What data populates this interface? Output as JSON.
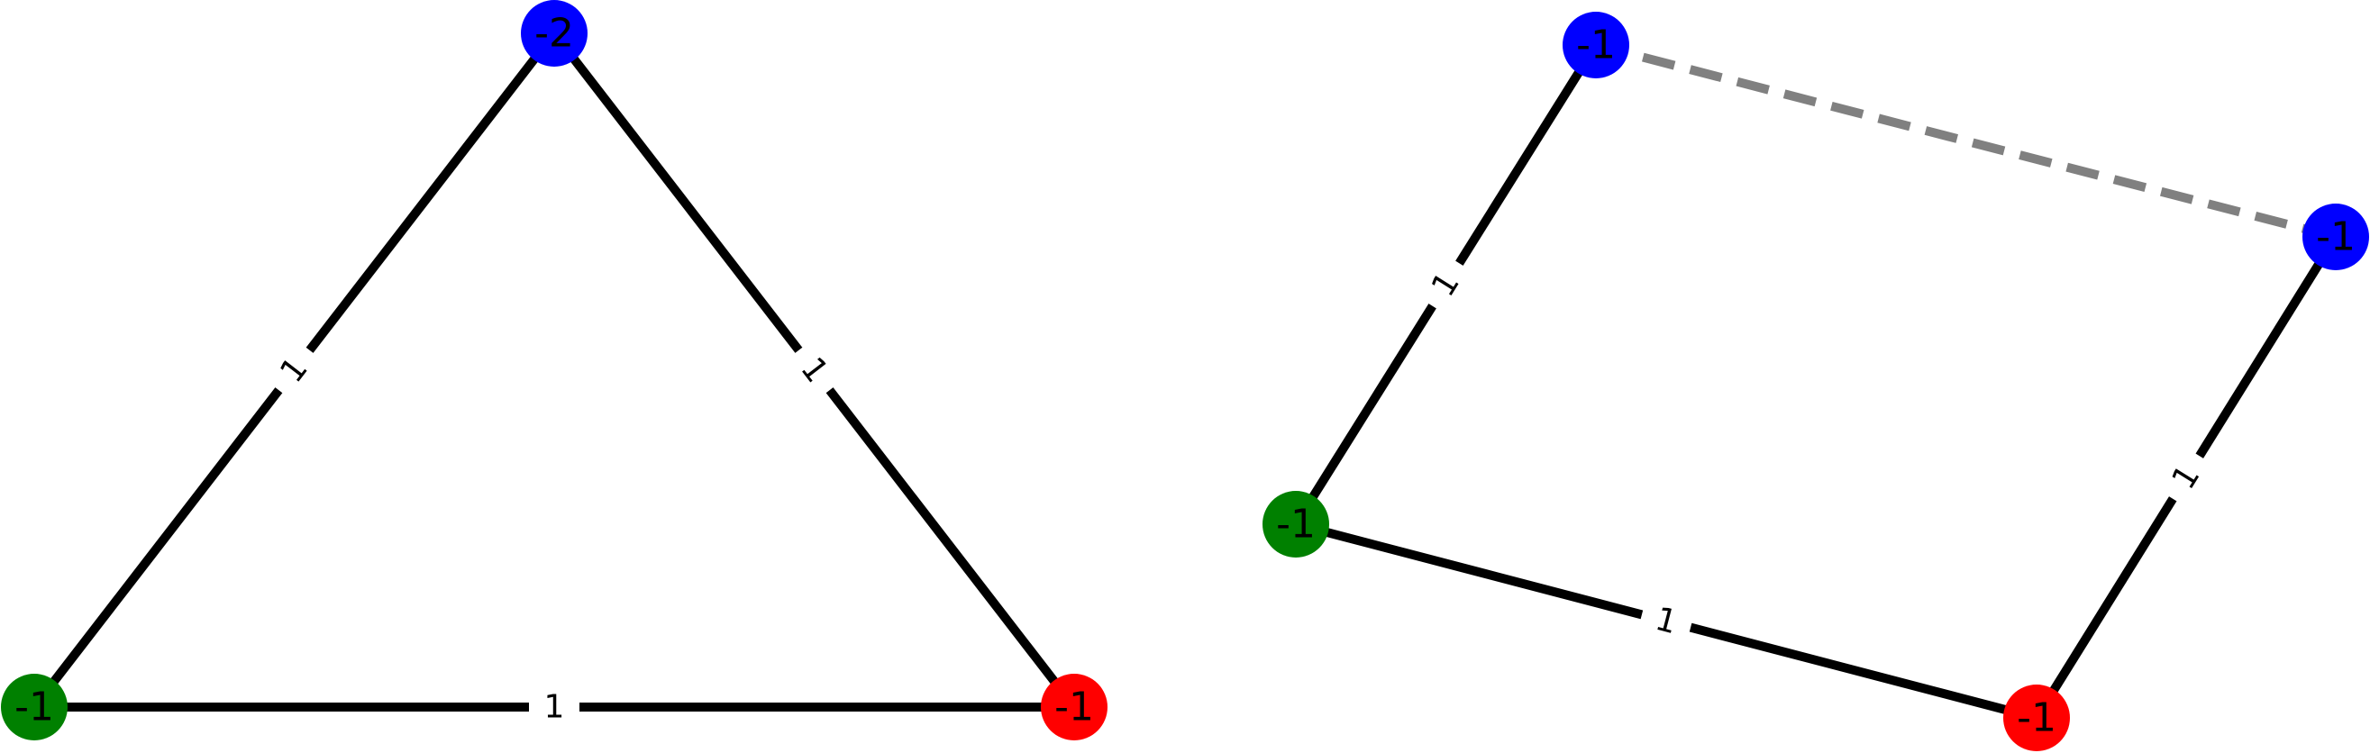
{
  "graphs": [
    {
      "name": "",
      "nodes": [
        {
          "id": "t_top",
          "label": "-2",
          "color": "#0000ff"
        },
        {
          "id": "t_left",
          "label": "-1",
          "color": "#008000"
        },
        {
          "id": "t_right",
          "label": "-1",
          "color": "#ff0000"
        }
      ],
      "edges": [
        {
          "from": "t_top",
          "to": "t_left",
          "label": "1",
          "style": "solid",
          "color": "#000000"
        },
        {
          "from": "t_top",
          "to": "t_right",
          "label": "1",
          "style": "solid",
          "color": "#000000"
        },
        {
          "from": "t_left",
          "to": "t_right",
          "label": "1",
          "style": "solid",
          "color": "#000000"
        }
      ]
    },
    {
      "name": "",
      "nodes": [
        {
          "id": "q_top",
          "label": "-1",
          "color": "#0000ff"
        },
        {
          "id": "q_right",
          "label": "-1",
          "color": "#0000ff"
        },
        {
          "id": "q_left",
          "label": "-1",
          "color": "#008000"
        },
        {
          "id": "q_bottom",
          "label": "-1",
          "color": "#ff0000"
        }
      ],
      "edges": [
        {
          "from": "q_top",
          "to": "q_right",
          "label": "",
          "style": "dashed",
          "color": "#808080"
        },
        {
          "from": "q_top",
          "to": "q_left",
          "label": "1",
          "style": "solid",
          "color": "#000000"
        },
        {
          "from": "q_left",
          "to": "q_bottom",
          "label": "1",
          "style": "solid",
          "color": "#000000"
        },
        {
          "from": "q_bottom",
          "to": "q_right",
          "label": "1",
          "style": "solid",
          "color": "#000000"
        }
      ]
    }
  ]
}
